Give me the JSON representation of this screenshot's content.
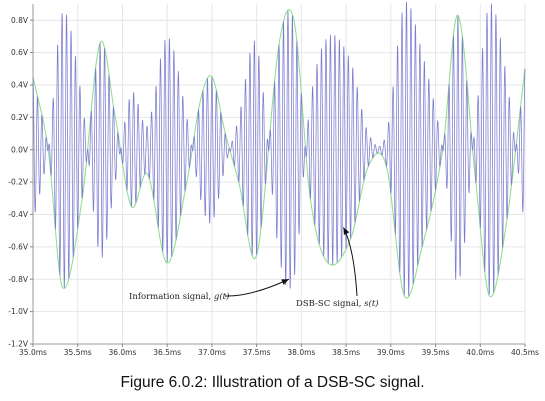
{
  "chart_data": {
    "type": "line",
    "title": "",
    "xlabel": "",
    "ylabel": "",
    "x_unit": "ms",
    "xlim": [
      35.0,
      40.5
    ],
    "ylim": [
      -1.2,
      0.9
    ],
    "x_ticks": [
      35.0,
      35.5,
      36.0,
      36.5,
      37.0,
      37.5,
      38.0,
      38.5,
      39.0,
      39.5,
      40.0,
      40.5
    ],
    "x_tick_labels": [
      "35.0ms",
      "35.5ms",
      "36.0ms",
      "36.5ms",
      "37.0ms",
      "37.5ms",
      "38.0ms",
      "38.5ms",
      "39.0ms",
      "39.5ms",
      "40.0ms",
      "40.5ms"
    ],
    "y_ticks": [
      -1.2,
      -1.0,
      -0.8,
      -0.6,
      -0.4,
      -0.2,
      0.0,
      0.2,
      0.4,
      0.6,
      0.8
    ],
    "y_tick_labels": [
      "-1.2V",
      "-1.0V",
      "-0.8V",
      "-0.6V",
      "-0.4V",
      "-0.2V",
      "0.0V",
      "0.2V",
      "0.4V",
      "0.6V",
      "0.8V"
    ],
    "grid": true,
    "series": [
      {
        "name": "Information signal, g(t)",
        "color": "#90e090",
        "x": [
          35.0,
          35.17,
          35.33,
          35.55,
          35.75,
          35.92,
          36.1,
          36.28,
          36.5,
          36.72,
          36.87,
          37.0,
          37.15,
          37.3,
          37.5,
          37.75,
          37.92,
          38.1,
          38.3,
          38.55,
          38.75,
          38.95,
          39.15,
          39.35,
          39.58,
          39.75,
          39.95,
          40.1,
          40.28,
          40.5
        ],
        "values": [
          0.45,
          0.0,
          -0.85,
          -0.3,
          0.66,
          0.2,
          -0.35,
          -0.15,
          -0.7,
          -0.2,
          0.3,
          0.45,
          0.1,
          -0.2,
          -0.65,
          0.65,
          0.79,
          -0.3,
          -0.7,
          -0.55,
          -0.1,
          -0.1,
          -0.9,
          -0.6,
          0.0,
          0.83,
          -0.2,
          -0.9,
          -0.5,
          0.5
        ]
      },
      {
        "name": "DSB-SC signal, s(t)",
        "color": "#7b7bd0",
        "carrier_frequency_khz": 20
      }
    ],
    "annotations": [
      {
        "label": "Information signal, ",
        "math": "g(t)",
        "arrow_to": [
          37.86,
          -0.8
        ]
      },
      {
        "label": "DSB-SC signal, ",
        "math": "s(t)",
        "arrow_to": [
          38.47,
          -0.48
        ]
      }
    ]
  },
  "caption": "Figure 6.0.2: Illustration of a DSB-SC signal."
}
